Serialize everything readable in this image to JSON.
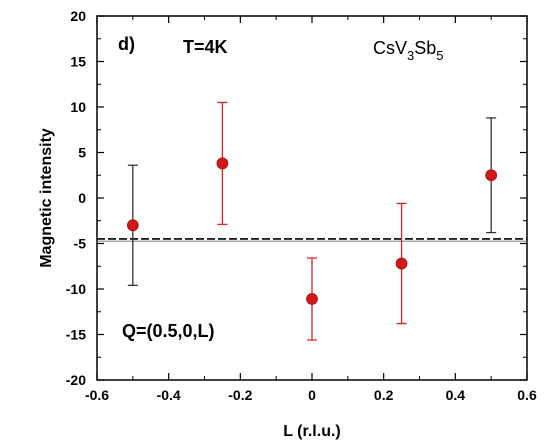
{
  "chart_data": {
    "type": "scatter",
    "xlabel": "L (r.l.u.)",
    "ylabel": "Magnetic intensity",
    "xlim": [
      -0.6,
      0.6
    ],
    "ylim": [
      -20,
      20
    ],
    "x_ticks": [
      "-0.6",
      "-0.4",
      "-0.2",
      "0",
      "0.2",
      "0.4",
      "0.6"
    ],
    "y_ticks": [
      "-20",
      "-15",
      "-10",
      "-5",
      "0",
      "5",
      "10",
      "15",
      "20"
    ],
    "points": [
      {
        "x": -0.5,
        "y": -3.0,
        "err": 6.6,
        "errorbar_color": "#333333"
      },
      {
        "x": -0.25,
        "y": 3.8,
        "err": 6.7,
        "errorbar_color": "#e02020"
      },
      {
        "x": 0.0,
        "y": -11.1,
        "err": 4.5,
        "errorbar_color": "#e02020"
      },
      {
        "x": 0.25,
        "y": -7.2,
        "err": 6.6,
        "errorbar_color": "#e02020"
      },
      {
        "x": 0.5,
        "y": 2.5,
        "err": 6.3,
        "errorbar_color": "#333333"
      }
    ],
    "reference_line": {
      "y": -4.5,
      "style": "dashed",
      "color": "#000000"
    },
    "marker_color": "#d01818",
    "grid": false,
    "annotations": {
      "panel_label": "d)",
      "temperature": "T=4K",
      "q_vector": "Q=(0.5,0,L)",
      "compound_parts": [
        "CsV",
        "3",
        "Sb",
        "5"
      ]
    }
  }
}
